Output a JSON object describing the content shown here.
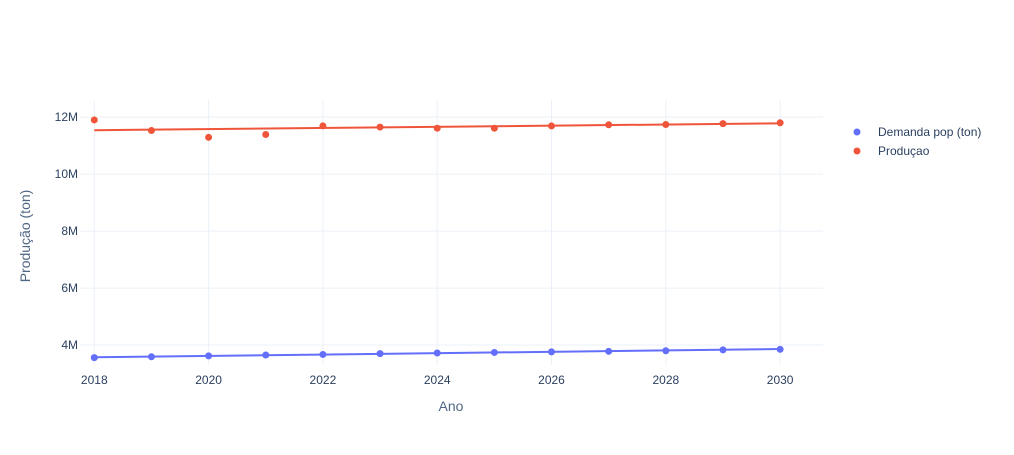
{
  "chart_data": {
    "type": "scatter",
    "title": "",
    "xlabel": "Ano",
    "ylabel": "Produção (ton)",
    "xlim": [
      2017.75,
      2030.75
    ],
    "ylim": [
      3300000,
      12600000
    ],
    "x_ticks": [
      2018,
      2020,
      2022,
      2024,
      2026,
      2028,
      2030
    ],
    "x_tick_labels": [
      "2018",
      "2020",
      "2022",
      "2024",
      "2026",
      "2028",
      "2030"
    ],
    "y_ticks": [
      4000000,
      6000000,
      8000000,
      10000000,
      12000000
    ],
    "y_tick_labels": [
      "4M",
      "6M",
      "8M",
      "10M",
      "12M"
    ],
    "grid": true,
    "legend_position": "top-right",
    "series": [
      {
        "name": "Demanda pop (ton)",
        "color": "#636efa",
        "x": [
          2018,
          2019,
          2020,
          2021,
          2022,
          2023,
          2024,
          2025,
          2026,
          2027,
          2028,
          2029,
          2030
        ],
        "y": [
          3560000,
          3590000,
          3620000,
          3650000,
          3670000,
          3700000,
          3720000,
          3740000,
          3760000,
          3780000,
          3800000,
          3830000,
          3850000
        ],
        "trendline": {
          "x": [
            2018,
            2030
          ],
          "y": [
            3570000,
            3860000
          ]
        }
      },
      {
        "name": "Produçao",
        "color": "#ef553b",
        "x": [
          2018,
          2019,
          2020,
          2021,
          2022,
          2023,
          2024,
          2025,
          2026,
          2027,
          2028,
          2029,
          2030
        ],
        "y": [
          11900000,
          11530000,
          11290000,
          11390000,
          11690000,
          11650000,
          11610000,
          11610000,
          11690000,
          11730000,
          11740000,
          11770000,
          11800000
        ],
        "trendline": {
          "x": [
            2018,
            2030
          ],
          "y": [
            11540000,
            11780000
          ]
        }
      }
    ]
  }
}
